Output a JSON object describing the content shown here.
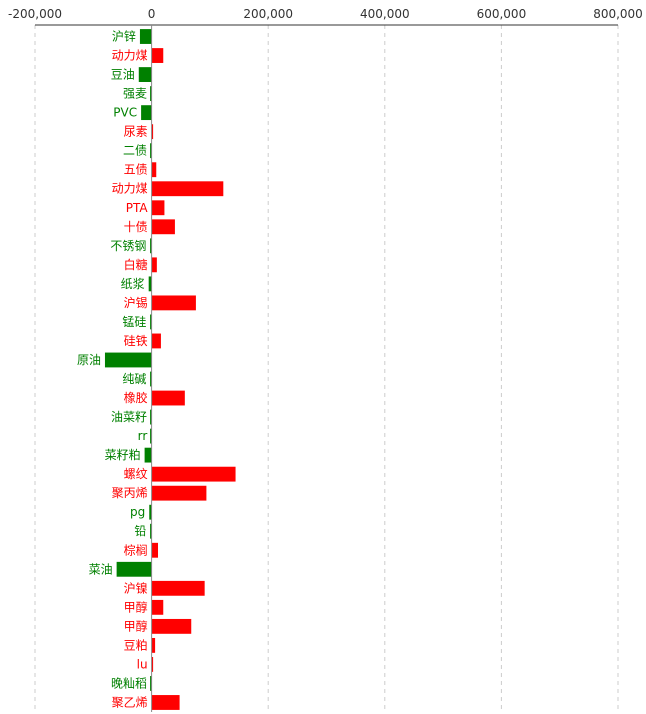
{
  "chart_data": {
    "type": "bar",
    "orientation": "horizontal",
    "xlim": [
      -200000,
      800000
    ],
    "x_ticks": [
      "-200,000",
      "0",
      "200,000",
      "400,000",
      "600,000",
      "800,000"
    ],
    "x_tick_values": [
      -200000,
      0,
      200000,
      400000,
      600000,
      800000
    ],
    "grid": "vertical dashed",
    "colors": {
      "positive": "#ff0000",
      "negative": "#008000",
      "grid": "#cccccc",
      "axis": "#333333"
    },
    "categories": [
      "沪锌",
      "动力煤",
      "豆油",
      "强麦",
      "PVC",
      "尿素",
      "二债",
      "五债",
      "动力煤",
      "PTA",
      "十债",
      "不锈钢",
      "白糖",
      "纸浆",
      "沪锡",
      "锰硅",
      "硅铁",
      "原油",
      "纯碱",
      "橡胶",
      "油菜籽",
      "rr",
      "菜籽粕",
      "螺纹",
      "聚丙烯",
      "pg",
      "铅",
      "棕榈",
      "菜油",
      "沪镍",
      "甲醇",
      "甲醇",
      "豆粕",
      "lu",
      "晚籼稻",
      "聚乙烯"
    ],
    "values": [
      -20000,
      20000,
      -22000,
      -1000,
      -18000,
      1000,
      -1000,
      8000,
      123000,
      22000,
      40000,
      -2000,
      9000,
      -5000,
      76000,
      -2000,
      16000,
      -80000,
      -2000,
      57000,
      -1000,
      -500,
      -12000,
      144000,
      94000,
      -4000,
      -2000,
      11000,
      -60000,
      91000,
      20000,
      68000,
      6000,
      1000,
      -1000,
      48000
    ]
  }
}
